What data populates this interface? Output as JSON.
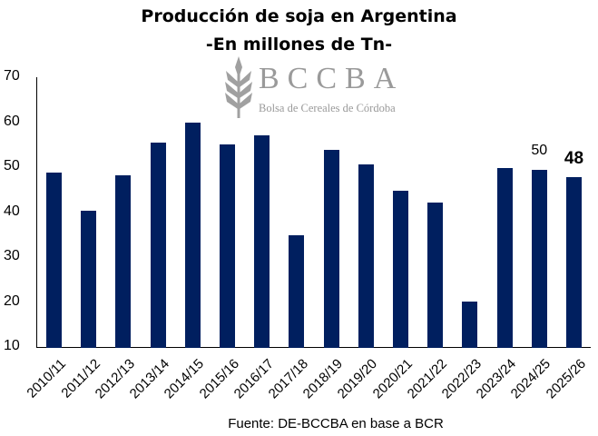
{
  "chart_data": {
    "type": "bar",
    "title": "Producción de soja en Argentina",
    "subtitle": "-En millones de Tn-",
    "xlabel": "",
    "ylabel": "",
    "ylim": [
      10,
      70
    ],
    "yticks": [
      70,
      60,
      50,
      40,
      30,
      20,
      10
    ],
    "grid": false,
    "bar_color": "#001f5f",
    "categories": [
      "2010/11",
      "2011/12",
      "2012/13",
      "2013/14",
      "2014/15",
      "2015/16",
      "2016/17",
      "2017/18",
      "2018/19",
      "2019/20",
      "2020/21",
      "2021/22",
      "2022/23",
      "2023/24",
      "2024/25",
      "2025/26"
    ],
    "values": [
      49,
      40.5,
      48.4,
      55.7,
      60.1,
      55.3,
      57.3,
      35,
      54,
      50.8,
      45,
      42.3,
      20.3,
      50,
      49.6,
      48
    ],
    "data_labels": [
      {
        "category": "2024/25",
        "text": "50"
      },
      {
        "category": "2025/26",
        "text": "48",
        "bold": true
      }
    ],
    "source": "Fuente: DE-BCCBA en base a BCR"
  },
  "logo": {
    "name": "BCCBA",
    "subtitle": "Bolsa de Cereales de Córdoba"
  }
}
